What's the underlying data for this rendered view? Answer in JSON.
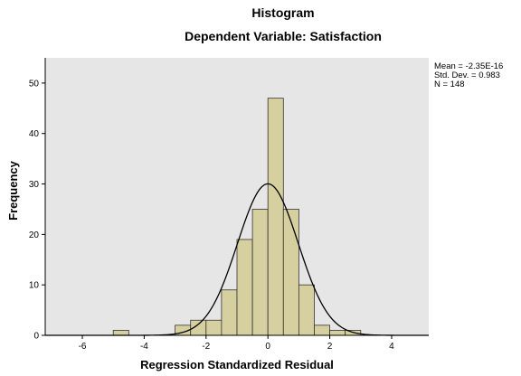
{
  "chart_data": {
    "type": "bar",
    "title": "Histogram",
    "subtitle": "Dependent Variable: Satisfaction",
    "xlabel": "Regression Standardized Residual",
    "ylabel": "Frequency",
    "xlim": [
      -7.2,
      5.2
    ],
    "ylim": [
      0,
      55
    ],
    "x_ticks": [
      -6,
      -4,
      -2,
      0,
      2,
      4
    ],
    "y_ticks": [
      0,
      10,
      20,
      30,
      40,
      50
    ],
    "bin_width": 0.5,
    "bins": [
      {
        "start": -5.0,
        "count": 1
      },
      {
        "start": -3.0,
        "count": 2
      },
      {
        "start": -2.5,
        "count": 3
      },
      {
        "start": -2.0,
        "count": 3
      },
      {
        "start": -1.5,
        "count": 9
      },
      {
        "start": -1.0,
        "count": 19
      },
      {
        "start": -0.5,
        "count": 25
      },
      {
        "start": 0.0,
        "count": 47
      },
      {
        "start": 0.5,
        "count": 25
      },
      {
        "start": 1.0,
        "count": 10
      },
      {
        "start": 1.5,
        "count": 2
      },
      {
        "start": 2.0,
        "count": 1
      },
      {
        "start": 2.5,
        "count": 1
      }
    ],
    "normal_curve": {
      "mean": 0,
      "sd": 0.983
    },
    "stats": {
      "mean": "Mean = -2.35E-16",
      "std_dev": "Std. Dev. = 0.983",
      "n": "N = 148"
    },
    "colors": {
      "plot_background": "#e6e6e6",
      "bar_fill": "#d6cf9f",
      "bar_stroke": "#333333",
      "curve": "#000000"
    }
  }
}
